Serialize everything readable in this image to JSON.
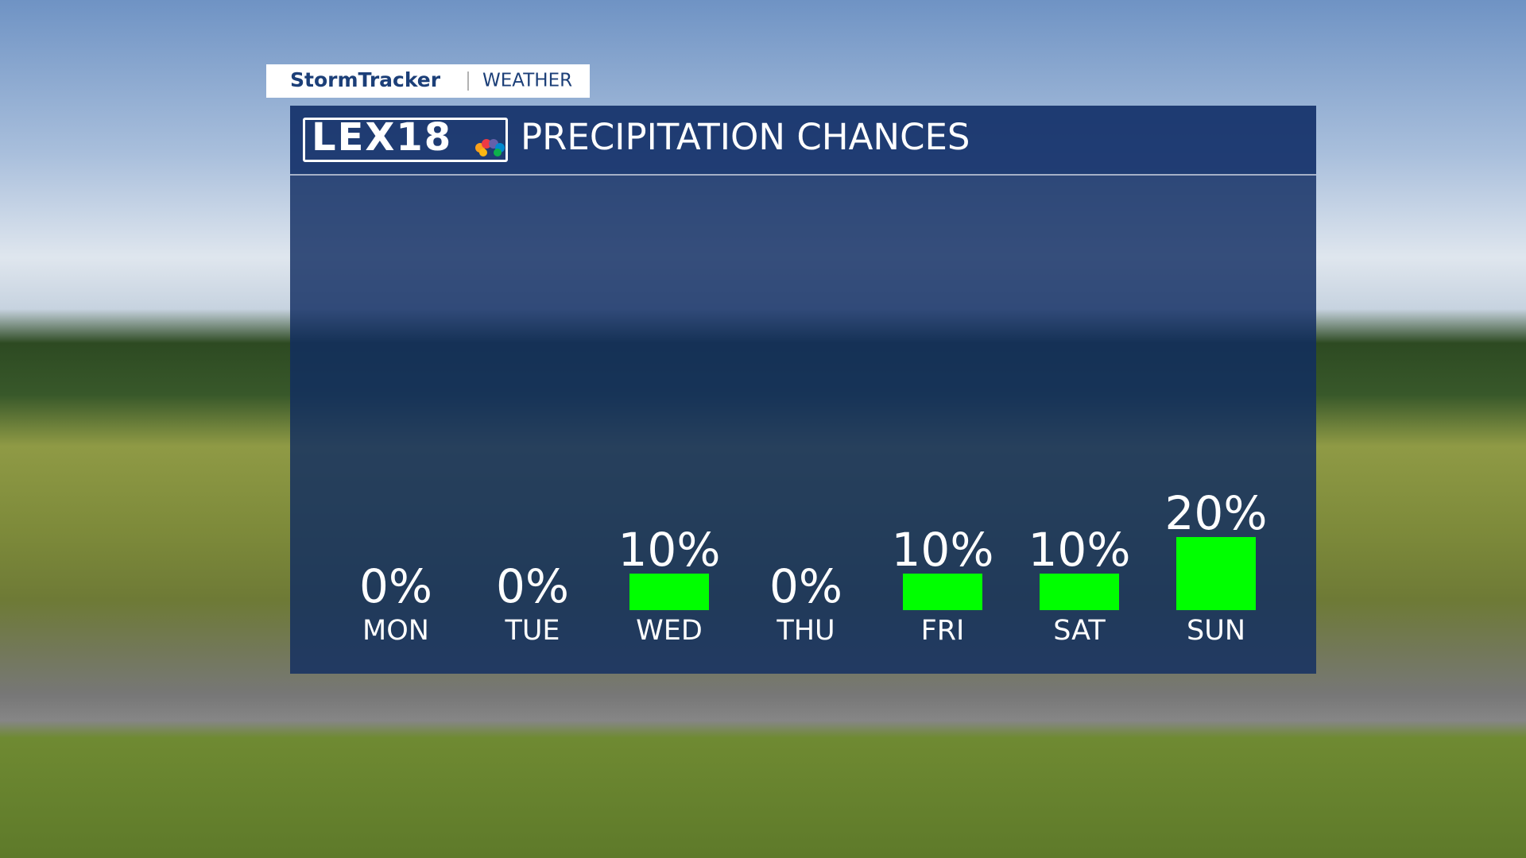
{
  "header": {
    "brand": "StormTracker",
    "section": "WEATHER"
  },
  "logo": "LEX18",
  "chart_data": {
    "type": "bar",
    "title": "PRECIPITATION CHANCES",
    "categories": [
      "MON",
      "TUE",
      "WED",
      "THU",
      "FRI",
      "SAT",
      "SUN"
    ],
    "values": [
      0,
      0,
      10,
      0,
      10,
      10,
      20
    ],
    "value_labels": [
      "0%",
      "0%",
      "10%",
      "0%",
      "10%",
      "10%",
      "20%"
    ],
    "color": "#00ff00"
  }
}
